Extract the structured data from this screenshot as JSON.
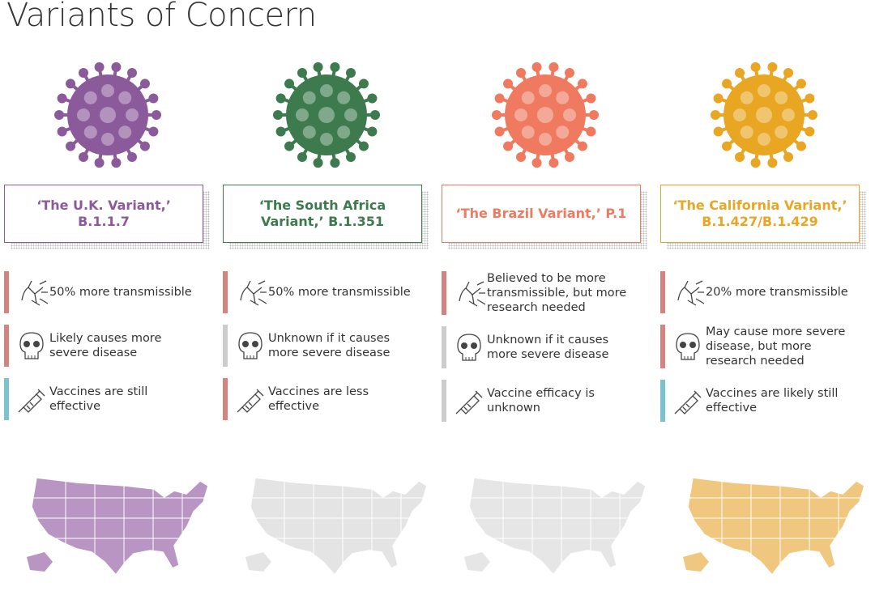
{
  "title": "Variants of Concern",
  "variants": [
    {
      "name": "‘The U.K. Variant,’ B.1.1.7",
      "color": "#8b5a9a",
      "items": [
        {
          "text": "50% more transmissible",
          "color": "#d4837f"
        },
        {
          "text": "Likely causes more severe disease",
          "color": "#d4837f"
        },
        {
          "text": "Vaccines are still effective",
          "color": "#7cc3d0"
        }
      ]
    },
    {
      "name": "‘The South Africa Variant,’ B.1.351",
      "color": "#3d7a4e",
      "items": [
        {
          "text": "50% more transmissible",
          "color": "#d4837f"
        },
        {
          "text": "Unknown if it causes more severe disease",
          "color": "#cccccc"
        },
        {
          "text": "Vaccines are less effective",
          "color": "#d4837f"
        }
      ]
    },
    {
      "name": "‘The Brazil Variant,’ P.1",
      "color": "#ef7a60",
      "items": [
        {
          "text": "Believed to be more transmissible, but more research needed",
          "color": "#d4837f"
        },
        {
          "text": "Unknown if it causes more severe disease",
          "color": "#cccccc"
        },
        {
          "text": "Vaccine efficacy is unknown",
          "color": "#cccccc"
        }
      ]
    },
    {
      "name": "‘The California Variant,’ B.1.427/B.1.429",
      "color": "#e8a623",
      "items": [
        {
          "text": "20% more transmissible",
          "color": "#d4837f"
        },
        {
          "text": "May cause more severe disease, but more research needed",
          "color": "#d4837f"
        },
        {
          "text": "Vaccines are likely still effective",
          "color": "#7cc3d0"
        }
      ]
    }
  ]
}
